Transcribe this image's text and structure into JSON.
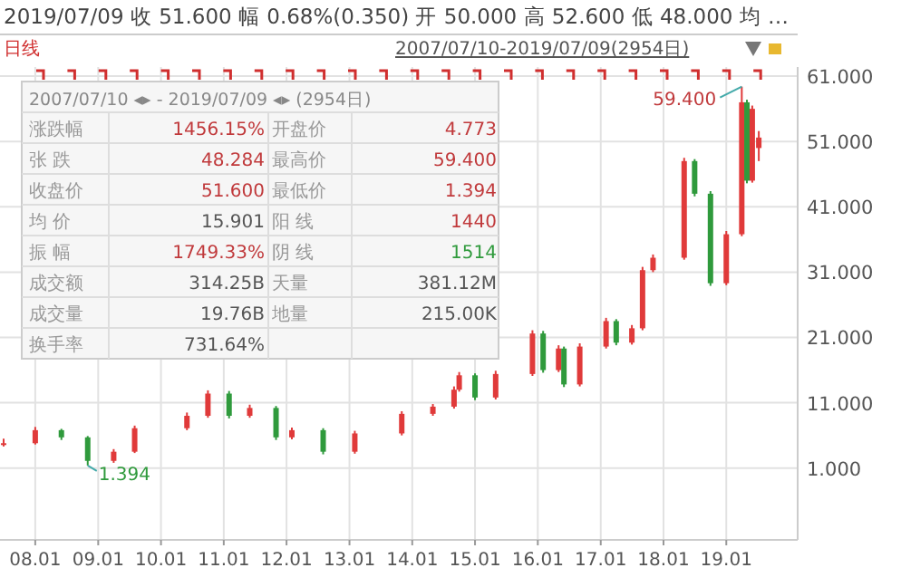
{
  "chart_data": {
    "type": "candlestick",
    "title": "2019/07/09  收 51.600  幅 0.68%(0.350)  开 50.000  高 52.600  低 48.000  均 …",
    "subtitle": "日线",
    "x": [
      "2007-07",
      "2008-01",
      "2008-06",
      "2008-11",
      "2009-04",
      "2009-08",
      "2010-06",
      "2010-10",
      "2011-02",
      "2011-06",
      "2011-11",
      "2012-02",
      "2012-08",
      "2013-02",
      "2013-11",
      "2014-05",
      "2014-09",
      "2014-10",
      "2015-01",
      "2015-05",
      "2015-12",
      "2016-02",
      "2016-05",
      "2016-06",
      "2016-09",
      "2017-02",
      "2017-04",
      "2017-07",
      "2017-09",
      "2017-11",
      "2018-05",
      "2018-07",
      "2018-10",
      "2019-01",
      "2019-04",
      "2019-05",
      "2019-06",
      "2019-07-09"
    ],
    "ohlc": [
      [
        4.773,
        5.5,
        4.3,
        4.8
      ],
      [
        4.8,
        7.3,
        4.6,
        6.8
      ],
      [
        6.8,
        7.0,
        5.3,
        5.7
      ],
      [
        5.7,
        5.9,
        1.394,
        2.1
      ],
      [
        2.1,
        3.9,
        1.8,
        3.5
      ],
      [
        3.5,
        7.5,
        3.3,
        7.1
      ],
      [
        7.1,
        9.5,
        6.8,
        9
      ],
      [
        9,
        12.9,
        8.7,
        12.4
      ],
      [
        12.4,
        12.8,
        8.6,
        9
      ],
      [
        9,
        10.7,
        8.7,
        10.2
      ],
      [
        10.2,
        10.5,
        5.3,
        5.7
      ],
      [
        5.7,
        7.2,
        5.4,
        6.8
      ],
      [
        6.8,
        7.1,
        3.1,
        3.5
      ],
      [
        3.5,
        6.7,
        3.2,
        6.3
      ],
      [
        6.3,
        9.7,
        6.0,
        9.3
      ],
      [
        9.3,
        10.8,
        9.0,
        10.4
      ],
      [
        10.4,
        13.5,
        10.1,
        13
      ],
      [
        13,
        15.7,
        12.7,
        15.2
      ],
      [
        15.2,
        15.5,
        11.4,
        11.8
      ],
      [
        11.8,
        15.9,
        11.5,
        15.4
      ],
      [
        15.4,
        22.1,
        15.1,
        21.6
      ],
      [
        21.6,
        22,
        15.6,
        16
      ],
      [
        16,
        19.8,
        15.7,
        19.3
      ],
      [
        19.3,
        19.6,
        13.4,
        13.8
      ],
      [
        13.8,
        20.1,
        13.5,
        19.6
      ],
      [
        19.6,
        24,
        19.3,
        23.5
      ],
      [
        23.5,
        23.8,
        19.8,
        20.2
      ],
      [
        20.2,
        22.9,
        19.9,
        22.4
      ],
      [
        22.4,
        31.8,
        22.1,
        31.3
      ],
      [
        31.3,
        33.7,
        31,
        33.2
      ],
      [
        33.2,
        48.5,
        32.9,
        48
      ],
      [
        48,
        48.3,
        42.6,
        43
      ],
      [
        43,
        43.4,
        28.9,
        29.3
      ],
      [
        29.3,
        37.3,
        29,
        36.8
      ],
      [
        36.8,
        59.4,
        36.5,
        57
      ],
      [
        57,
        57.4,
        44.6,
        45
      ],
      [
        45,
        56.5,
        44.7,
        56
      ],
      [
        50,
        52.6,
        48,
        51.6
      ]
    ],
    "xlim": [
      "2007-06-10",
      "2020-02-20"
    ],
    "xticks": [
      {
        "value": "2008-01-01",
        "label": "08.01"
      },
      {
        "value": "2009-01-01",
        "label": "09.01"
      },
      {
        "value": "2010-01-01",
        "label": "10.01"
      },
      {
        "value": "2011-01-01",
        "label": "11.01"
      },
      {
        "value": "2012-01-01",
        "label": "12.01"
      },
      {
        "value": "2013-01-01",
        "label": "13.01"
      },
      {
        "value": "2014-01-01",
        "label": "14.01"
      },
      {
        "value": "2015-01-01",
        "label": "15.01"
      },
      {
        "value": "2016-01-01",
        "label": "16.01"
      },
      {
        "value": "2017-01-01",
        "label": "17.01"
      },
      {
        "value": "2018-01-01",
        "label": "18.01"
      },
      {
        "value": "2019-01-01",
        "label": "19.01"
      }
    ],
    "ylim": [
      -10,
      62.4
    ],
    "yticks": [
      {
        "value": 1,
        "label": "1.000"
      },
      {
        "value": 11,
        "label": "11.000"
      },
      {
        "value": 21,
        "label": "21.000"
      },
      {
        "value": 31,
        "label": "31.000"
      },
      {
        "value": 41,
        "label": "41.000"
      },
      {
        "value": 51,
        "label": "51.000"
      },
      {
        "value": 61,
        "label": "61.000"
      }
    ],
    "grid": true,
    "annotations": [
      "2007/07/10-2019/07/09(2954日)",
      "2007/07/10 ◂▸ - 2019/07/09 ◂▸ (2954日)",
      "涨跌幅",
      "1456.15%",
      "开盘价",
      "4.773",
      "张 跌",
      "48.284",
      "最高价",
      "59.400",
      "收盘价",
      "51.600",
      "最低价",
      "1.394",
      "均 价",
      "15.901",
      "阳 线",
      "1440",
      "振 幅",
      "1749.33%",
      "阴 线",
      "1514",
      "成交额",
      "314.25B",
      "天量",
      "381.12M",
      "成交量",
      "19.76B",
      "地量",
      "215.00K",
      "换手率",
      "731.64%",
      {
        "text": "59.400",
        "x": "2019-04",
        "y": 59.4
      },
      {
        "text": "1.394",
        "x": "2008-11",
        "y": 1.394
      }
    ]
  }
}
